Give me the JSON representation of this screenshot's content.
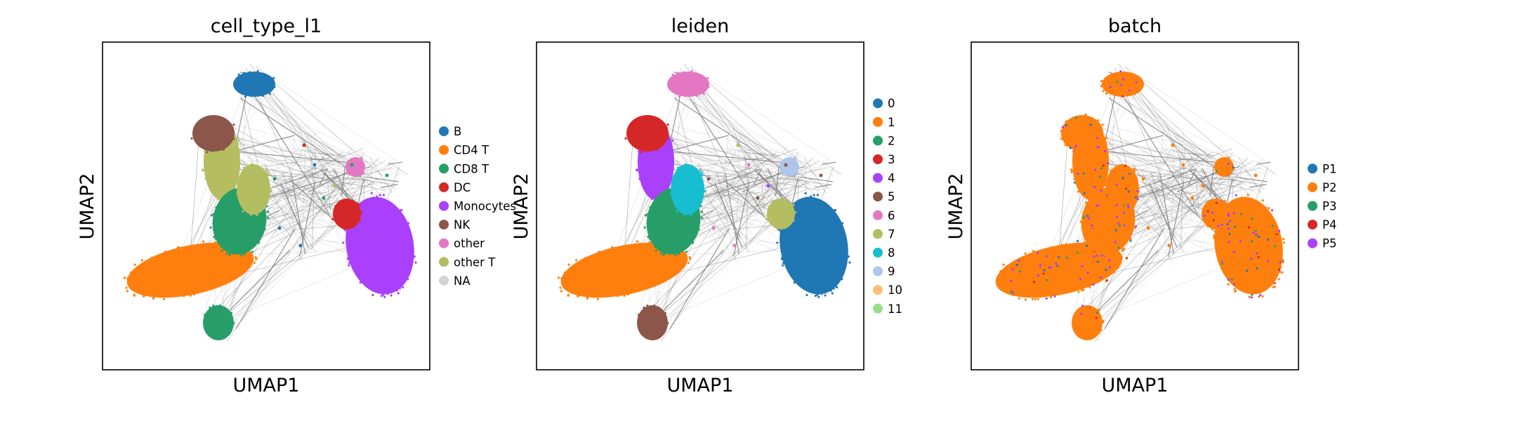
{
  "chart_data": [
    {
      "type": "scatter",
      "title": "cell_type_l1",
      "xlabel": "UMAP1",
      "ylabel": "UMAP2",
      "ticks": "hidden",
      "grid": false,
      "legend_position": "right",
      "edges": true,
      "edge_color": "#808080",
      "legend": [
        {
          "label": "B",
          "color": "#1f77b4"
        },
        {
          "label": "CD4 T",
          "color": "#ff7f0e"
        },
        {
          "label": "CD8 T",
          "color": "#279e68"
        },
        {
          "label": "DC",
          "color": "#d62728"
        },
        {
          "label": "Monocytes",
          "color": "#aa40fc"
        },
        {
          "label": "NK",
          "color": "#8c564b"
        },
        {
          "label": "other",
          "color": "#e377c2"
        },
        {
          "label": "other T",
          "color": "#b5bd61"
        },
        {
          "label": "NA",
          "color": "#d3d3d3"
        }
      ]
    },
    {
      "type": "scatter",
      "title": "leiden",
      "xlabel": "UMAP1",
      "ylabel": "UMAP2",
      "ticks": "hidden",
      "grid": false,
      "legend_position": "right",
      "edges": true,
      "edge_color": "#808080",
      "legend": [
        {
          "label": "0",
          "color": "#1f77b4"
        },
        {
          "label": "1",
          "color": "#ff7f0e"
        },
        {
          "label": "2",
          "color": "#279e68"
        },
        {
          "label": "3",
          "color": "#d62728"
        },
        {
          "label": "4",
          "color": "#aa40fc"
        },
        {
          "label": "5",
          "color": "#8c564b"
        },
        {
          "label": "6",
          "color": "#e377c2"
        },
        {
          "label": "7",
          "color": "#b5bd61"
        },
        {
          "label": "8",
          "color": "#17becf"
        },
        {
          "label": "9",
          "color": "#aec7e8"
        },
        {
          "label": "10",
          "color": "#ffbb78"
        },
        {
          "label": "11",
          "color": "#98df8a"
        }
      ]
    },
    {
      "type": "scatter",
      "title": "batch",
      "xlabel": "UMAP1",
      "ylabel": "UMAP2",
      "ticks": "hidden",
      "grid": false,
      "legend_position": "right",
      "edges": true,
      "edge_color": "#808080",
      "legend": [
        {
          "label": "P1",
          "color": "#1f77b4"
        },
        {
          "label": "P2",
          "color": "#ff7f0e"
        },
        {
          "label": "P3",
          "color": "#279e68"
        },
        {
          "label": "P4",
          "color": "#d62728"
        },
        {
          "label": "P5",
          "color": "#aa40fc"
        }
      ]
    }
  ]
}
